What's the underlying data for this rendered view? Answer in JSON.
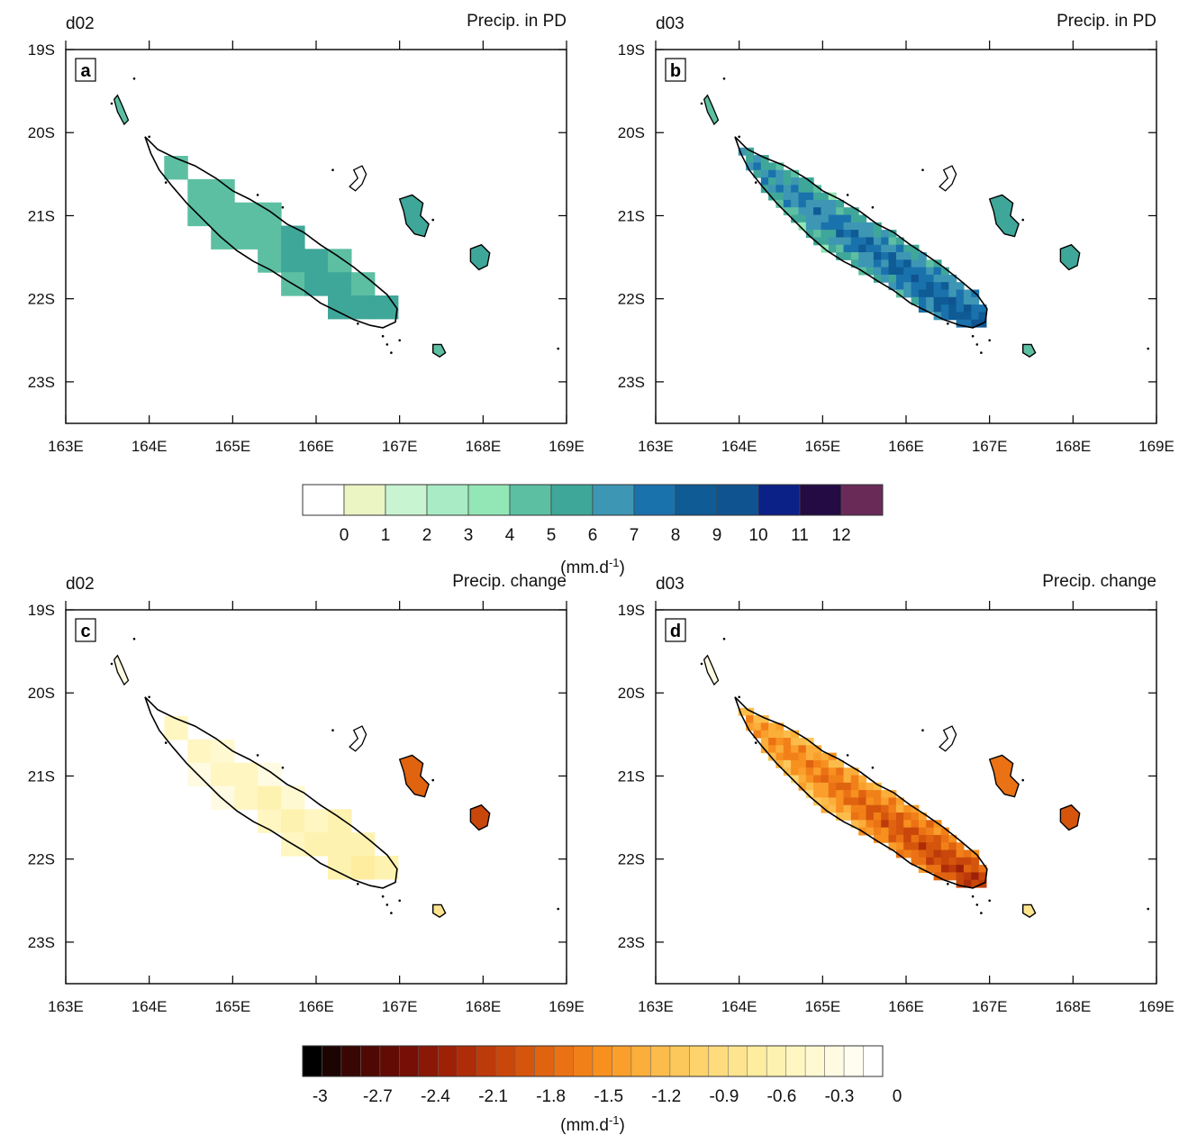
{
  "figure": {
    "panels": [
      {
        "id": "a",
        "domain": "d02",
        "title": "Precip. in PD",
        "colorbar": "pd",
        "field": "pd_coarse"
      },
      {
        "id": "b",
        "domain": "d03",
        "title": "Precip. in PD",
        "colorbar": "pd",
        "field": "pd_fine"
      },
      {
        "id": "c",
        "domain": "d02",
        "title": "Precip. change",
        "colorbar": "change",
        "field": "chg_coarse"
      },
      {
        "id": "d",
        "domain": "d03",
        "title": "Precip. change",
        "colorbar": "change",
        "field": "chg_fine"
      }
    ],
    "lat_ticks": [
      "19S",
      "20S",
      "21S",
      "22S",
      "23S"
    ],
    "lat_values": [
      -19,
      -20,
      -21,
      -22,
      -23
    ],
    "lon_ticks": [
      "163E",
      "164E",
      "165E",
      "166E",
      "167E",
      "168E",
      "169E"
    ],
    "lon_values": [
      163,
      164,
      165,
      166,
      167,
      168,
      169
    ],
    "lon_range": [
      163,
      169
    ],
    "lat_range": [
      -23.5,
      -19
    ],
    "colorbar_pd": {
      "labels": [
        "0",
        "1",
        "2",
        "3",
        "4",
        "5",
        "6",
        "7",
        "8",
        "9",
        "10",
        "11",
        "12"
      ],
      "colors": [
        "#ffffff",
        "#eaf5c3",
        "#c9f4d2",
        "#a8ebc4",
        "#93e6b6",
        "#5dbfa2",
        "#3fa799",
        "#3e96b5",
        "#1a72ad",
        "#0e5b95",
        "#0f5490",
        "#0c2188",
        "#240b44",
        "#6a2a58"
      ],
      "unit": "(mm.d",
      "unit_sup": "-1",
      "unit_close": ")"
    },
    "colorbar_change": {
      "labels": [
        "-3",
        "-2.7",
        "-2.4",
        "-2.1",
        "-1.8",
        "-1.5",
        "-1.2",
        "-0.9",
        "-0.6",
        "-0.3",
        "0"
      ],
      "colors": [
        "#000000",
        "#1c0403",
        "#380703",
        "#4f0803",
        "#620b04",
        "#760f05",
        "#8b1706",
        "#9e2107",
        "#ae2d08",
        "#bd3a0a",
        "#c9470b",
        "#d5550d",
        "#e06310",
        "#ea7214",
        "#f28019",
        "#f7901f",
        "#fa9f2c",
        "#fbae3a",
        "#fcbc4b",
        "#fdc85b",
        "#fed36c",
        "#fedc7d",
        "#fee48e",
        "#feec9f",
        "#fef2b0",
        "#fff6c1",
        "#fff9d2",
        "#fffbe2",
        "#fffdf0",
        "#ffffff"
      ],
      "unit": "(mm.d",
      "unit_sup": "-1",
      "unit_close": ")"
    }
  }
}
